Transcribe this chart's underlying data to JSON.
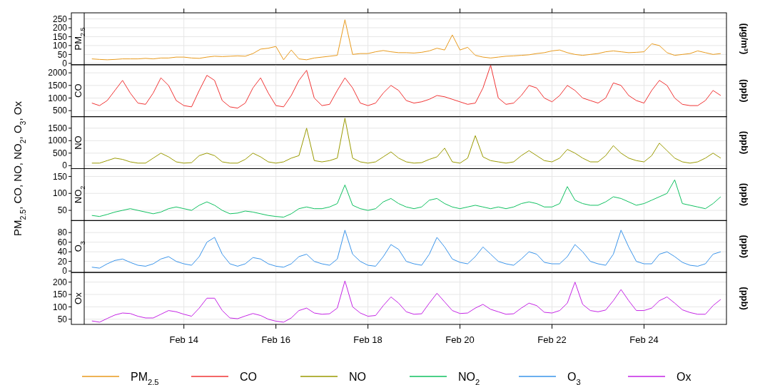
{
  "chart_data": [
    {
      "type": "line",
      "title": "PM$_{2.5}$",
      "ylabel": "PM$_{2.5}$, CO, NO, NO$_{2}$, O$_{3}$, Ox",
      "y2label": "(µg/m³)",
      "xlim": [
        "--02-11T20:00",
        "--02-25T19:00"
      ],
      "xticks": [
        {
          "value": "--02-14",
          "label": null
        },
        {
          "value": "--02-16",
          "label": null
        },
        {
          "value": "--02-18",
          "label": null
        },
        {
          "value": "--02-20",
          "label": null
        },
        {
          "value": "--02-22",
          "label": null
        },
        {
          "value": "--02-24",
          "label": null
        }
      ],
      "ylim": [
        -8,
        284
      ],
      "yticks": [
        0,
        50,
        100,
        150,
        200,
        250
      ],
      "tick_labels": "y",
      "grid": true,
      "legend": "bottom",
      "x": [
        "--02-12T00:00",
        "--02-12T04:00",
        "--02-12T08:00",
        "--02-12T12:00",
        "--02-12T16:00",
        "--02-12T20:00",
        "--02-13T00:00",
        "--02-13T04:00",
        "--02-13T08:00",
        "--02-13T12:00",
        "--02-13T16:00",
        "--02-13T20:00",
        "--02-14T00:00",
        "--02-14T04:00",
        "--02-14T08:00",
        "--02-14T12:00",
        "--02-14T16:00",
        "--02-14T20:00",
        "--02-15T00:00",
        "--02-15T04:00",
        "--02-15T08:00",
        "--02-15T12:00",
        "--02-15T16:00",
        "--02-15T20:00",
        "--02-16T00:00",
        "--02-16T04:00",
        "--02-16T08:00",
        "--02-16T12:00",
        "--02-16T16:00",
        "--02-16T20:00",
        "--02-17T00:00",
        "--02-17T04:00",
        "--02-17T08:00",
        "--02-17T12:00",
        "--02-17T16:00",
        "--02-17T20:00",
        "--02-18T00:00",
        "--02-18T04:00",
        "--02-18T08:00",
        "--02-18T12:00",
        "--02-18T16:00",
        "--02-18T20:00",
        "--02-19T00:00",
        "--02-19T04:00",
        "--02-19T08:00",
        "--02-19T12:00",
        "--02-19T16:00",
        "--02-19T20:00",
        "--02-20T00:00",
        "--02-20T04:00",
        "--02-20T08:00",
        "--02-20T12:00",
        "--02-20T16:00",
        "--02-20T20:00",
        "--02-21T00:00",
        "--02-21T04:00",
        "--02-21T08:00",
        "--02-21T12:00",
        "--02-21T16:00",
        "--02-21T20:00",
        "--02-22T00:00",
        "--02-22T04:00",
        "--02-22T08:00",
        "--02-22T12:00",
        "--02-22T16:00",
        "--02-22T20:00",
        "--02-23T00:00",
        "--02-23T04:00",
        "--02-23T08:00",
        "--02-23T12:00",
        "--02-23T16:00",
        "--02-23T20:00",
        "--02-24T00:00",
        "--02-24T04:00",
        "--02-24T08:00",
        "--02-24T12:00",
        "--02-24T16:00",
        "--02-24T20:00",
        "--02-25T00:00",
        "--02-25T04:00",
        "--02-25T08:00",
        "--02-25T12:00",
        "--02-25T16:00"
      ],
      "series": [
        {
          "name": "PM$_{2.5}$",
          "color": "#e89a1c",
          "values": [
            25,
            22,
            20,
            22,
            25,
            25,
            25,
            28,
            25,
            30,
            30,
            35,
            35,
            30,
            28,
            35,
            40,
            38,
            40,
            42,
            40,
            55,
            80,
            85,
            95,
            20,
            75,
            25,
            20,
            30,
            35,
            40,
            45,
            245,
            50,
            55,
            55,
            65,
            72,
            65,
            60,
            60,
            58,
            62,
            70,
            85,
            75,
            160,
            75,
            90,
            45,
            35,
            30,
            35,
            40,
            42,
            45,
            48,
            55,
            60,
            70,
            75,
            60,
            50,
            45,
            50,
            55,
            65,
            70,
            65,
            60,
            62,
            65,
            110,
            100,
            60,
            45,
            50,
            55,
            70,
            60,
            50,
            55
          ]
        }
      ]
    },
    {
      "type": "line",
      "title": "CO",
      "y2label": "(ppb)",
      "xlim": [
        "--02-11T20:00",
        "--02-25T19:00"
      ],
      "xticks": [
        {
          "value": "--02-14",
          "label": null
        },
        {
          "value": "--02-16",
          "label": null
        },
        {
          "value": "--02-18",
          "label": null
        },
        {
          "value": "--02-20",
          "label": null
        },
        {
          "value": "--02-22",
          "label": null
        },
        {
          "value": "--02-24",
          "label": null
        }
      ],
      "ylim": [
        260,
        2320
      ],
      "yticks": [
        500,
        1000,
        1500,
        2000
      ],
      "tick_labels": "y",
      "grid": true,
      "legend": "bottom",
      "x": [
        "--02-12T00:00",
        "--02-12T04:00",
        "--02-12T08:00",
        "--02-12T12:00",
        "--02-12T16:00",
        "--02-12T20:00",
        "--02-13T00:00",
        "--02-13T04:00",
        "--02-13T08:00",
        "--02-13T12:00",
        "--02-13T16:00",
        "--02-13T20:00",
        "--02-14T00:00",
        "--02-14T04:00",
        "--02-14T08:00",
        "--02-14T12:00",
        "--02-14T16:00",
        "--02-14T20:00",
        "--02-15T00:00",
        "--02-15T04:00",
        "--02-15T08:00",
        "--02-15T12:00",
        "--02-15T16:00",
        "--02-15T20:00",
        "--02-16T00:00",
        "--02-16T04:00",
        "--02-16T08:00",
        "--02-16T12:00",
        "--02-16T16:00",
        "--02-16T20:00",
        "--02-17T00:00",
        "--02-17T04:00",
        "--02-17T08:00",
        "--02-17T12:00",
        "--02-17T16:00",
        "--02-17T20:00",
        "--02-18T00:00",
        "--02-18T04:00",
        "--02-18T08:00",
        "--02-18T12:00",
        "--02-18T16:00",
        "--02-18T20:00",
        "--02-19T00:00",
        "--02-19T04:00",
        "--02-19T08:00",
        "--02-19T12:00",
        "--02-19T16:00",
        "--02-19T20:00",
        "--02-20T00:00",
        "--02-20T04:00",
        "--02-20T08:00",
        "--02-20T12:00",
        "--02-20T16:00",
        "--02-20T20:00",
        "--02-21T00:00",
        "--02-21T04:00",
        "--02-21T08:00",
        "--02-21T12:00",
        "--02-21T16:00",
        "--02-21T20:00",
        "--02-22T00:00",
        "--02-22T04:00",
        "--02-22T08:00",
        "--02-22T12:00",
        "--02-22T16:00",
        "--02-22T20:00",
        "--02-23T00:00",
        "--02-23T04:00",
        "--02-23T08:00",
        "--02-23T12:00",
        "--02-23T16:00",
        "--02-23T20:00",
        "--02-24T00:00",
        "--02-24T04:00",
        "--02-24T08:00",
        "--02-24T12:00",
        "--02-24T16:00",
        "--02-24T20:00",
        "--02-25T00:00",
        "--02-25T04:00",
        "--02-25T08:00",
        "--02-25T12:00",
        "--02-25T16:00"
      ],
      "series": [
        {
          "name": "CO",
          "color": "#f03434",
          "values": [
            800,
            700,
            900,
            1300,
            1700,
            1200,
            800,
            750,
            1200,
            1800,
            1500,
            900,
            700,
            650,
            1300,
            1900,
            1700,
            900,
            650,
            600,
            800,
            1400,
            1800,
            1200,
            700,
            650,
            1100,
            1700,
            2100,
            1000,
            700,
            750,
            1300,
            1800,
            1400,
            800,
            700,
            800,
            1200,
            1500,
            1300,
            900,
            800,
            850,
            950,
            1100,
            1050,
            950,
            850,
            750,
            800,
            1400,
            2300,
            1000,
            750,
            800,
            1100,
            1500,
            1400,
            1000,
            850,
            1100,
            1500,
            1300,
            1000,
            900,
            800,
            1000,
            1600,
            1500,
            1100,
            900,
            800,
            1300,
            1700,
            1500,
            1000,
            750,
            700,
            700,
            900,
            1300,
            1100
          ]
        }
      ]
    },
    {
      "type": "line",
      "title": "NO",
      "y2label": "(ppb)",
      "xlim": [
        "--02-11T20:00",
        "--02-25T19:00"
      ],
      "xticks": [
        {
          "value": "--02-14",
          "label": null
        },
        {
          "value": "--02-16",
          "label": null
        },
        {
          "value": "--02-18",
          "label": null
        },
        {
          "value": "--02-20",
          "label": null
        },
        {
          "value": "--02-22",
          "label": null
        },
        {
          "value": "--02-24",
          "label": null
        }
      ],
      "ylim": [
        -120,
        1960
      ],
      "yticks": [
        0,
        500,
        1000,
        1500
      ],
      "tick_labels": "y",
      "grid": true,
      "legend": "bottom",
      "x": [
        "--02-12T00:00",
        "--02-12T04:00",
        "--02-12T08:00",
        "--02-12T12:00",
        "--02-12T16:00",
        "--02-12T20:00",
        "--02-13T00:00",
        "--02-13T04:00",
        "--02-13T08:00",
        "--02-13T12:00",
        "--02-13T16:00",
        "--02-13T20:00",
        "--02-14T00:00",
        "--02-14T04:00",
        "--02-14T08:00",
        "--02-14T12:00",
        "--02-14T16:00",
        "--02-14T20:00",
        "--02-15T00:00",
        "--02-15T04:00",
        "--02-15T08:00",
        "--02-15T12:00",
        "--02-15T16:00",
        "--02-15T20:00",
        "--02-16T00:00",
        "--02-16T04:00",
        "--02-16T08:00",
        "--02-16T12:00",
        "--02-16T16:00",
        "--02-16T20:00",
        "--02-17T00:00",
        "--02-17T04:00",
        "--02-17T08:00",
        "--02-17T12:00",
        "--02-17T16:00",
        "--02-17T20:00",
        "--02-18T00:00",
        "--02-18T04:00",
        "--02-18T08:00",
        "--02-18T12:00",
        "--02-18T16:00",
        "--02-18T20:00",
        "--02-19T00:00",
        "--02-19T04:00",
        "--02-19T08:00",
        "--02-19T12:00",
        "--02-19T16:00",
        "--02-19T20:00",
        "--02-20T00:00",
        "--02-20T04:00",
        "--02-20T08:00",
        "--02-20T12:00",
        "--02-20T16:00",
        "--02-20T20:00",
        "--02-21T00:00",
        "--02-21T04:00",
        "--02-21T08:00",
        "--02-21T12:00",
        "--02-21T16:00",
        "--02-21T20:00",
        "--02-22T00:00",
        "--02-22T04:00",
        "--02-22T08:00",
        "--02-22T12:00",
        "--02-22T16:00",
        "--02-22T20:00",
        "--02-23T00:00",
        "--02-23T04:00",
        "--02-23T08:00",
        "--02-23T12:00",
        "--02-23T16:00",
        "--02-23T20:00",
        "--02-24T00:00",
        "--02-24T04:00",
        "--02-24T08:00",
        "--02-24T12:00",
        "--02-24T16:00",
        "--02-24T20:00",
        "--02-25T00:00",
        "--02-25T04:00",
        "--02-25T08:00",
        "--02-25T12:00",
        "--02-25T16:00"
      ],
      "series": [
        {
          "name": "NO",
          "color": "#9a9a00",
          "values": [
            100,
            100,
            200,
            300,
            250,
            150,
            100,
            100,
            300,
            500,
            350,
            150,
            100,
            120,
            400,
            500,
            400,
            150,
            100,
            100,
            250,
            500,
            350,
            150,
            100,
            150,
            300,
            400,
            1500,
            200,
            150,
            200,
            300,
            1900,
            300,
            150,
            100,
            150,
            350,
            550,
            300,
            150,
            100,
            120,
            250,
            350,
            700,
            150,
            100,
            300,
            1200,
            350,
            200,
            150,
            100,
            150,
            400,
            600,
            400,
            200,
            150,
            300,
            650,
            500,
            300,
            150,
            150,
            400,
            800,
            500,
            300,
            200,
            150,
            400,
            900,
            600,
            300,
            150,
            100,
            150,
            300,
            500,
            300
          ]
        }
      ]
    },
    {
      "type": "line",
      "title": "NO$_{2}$",
      "y2label": "(ppb)",
      "xlim": [
        "--02-11T20:00",
        "--02-25T19:00"
      ],
      "xticks": [
        {
          "value": "--02-14",
          "label": null
        },
        {
          "value": "--02-16",
          "label": null
        },
        {
          "value": "--02-18",
          "label": null
        },
        {
          "value": "--02-20",
          "label": null
        },
        {
          "value": "--02-22",
          "label": null
        },
        {
          "value": "--02-24",
          "label": null
        }
      ],
      "ylim": [
        20,
        173
      ],
      "yticks": [
        50,
        100,
        150
      ],
      "tick_labels": "y",
      "grid": true,
      "legend": "bottom",
      "x": [
        "--02-12T00:00",
        "--02-12T04:00",
        "--02-12T08:00",
        "--02-12T12:00",
        "--02-12T16:00",
        "--02-12T20:00",
        "--02-13T00:00",
        "--02-13T04:00",
        "--02-13T08:00",
        "--02-13T12:00",
        "--02-13T16:00",
        "--02-13T20:00",
        "--02-14T00:00",
        "--02-14T04:00",
        "--02-14T08:00",
        "--02-14T12:00",
        "--02-14T16:00",
        "--02-14T20:00",
        "--02-15T00:00",
        "--02-15T04:00",
        "--02-15T08:00",
        "--02-15T12:00",
        "--02-15T16:00",
        "--02-15T20:00",
        "--02-16T00:00",
        "--02-16T04:00",
        "--02-16T08:00",
        "--02-16T12:00",
        "--02-16T16:00",
        "--02-16T20:00",
        "--02-17T00:00",
        "--02-17T04:00",
        "--02-17T08:00",
        "--02-17T12:00",
        "--02-17T16:00",
        "--02-17T20:00",
        "--02-18T00:00",
        "--02-18T04:00",
        "--02-18T08:00",
        "--02-18T12:00",
        "--02-18T16:00",
        "--02-18T20:00",
        "--02-19T00:00",
        "--02-19T04:00",
        "--02-19T08:00",
        "--02-19T12:00",
        "--02-19T16:00",
        "--02-19T20:00",
        "--02-20T00:00",
        "--02-20T04:00",
        "--02-20T08:00",
        "--02-20T12:00",
        "--02-20T16:00",
        "--02-20T20:00",
        "--02-21T00:00",
        "--02-21T04:00",
        "--02-21T08:00",
        "--02-21T12:00",
        "--02-21T16:00",
        "--02-21T20:00",
        "--02-22T00:00",
        "--02-22T04:00",
        "--02-22T08:00",
        "--02-22T12:00",
        "--02-22T16:00",
        "--02-22T20:00",
        "--02-23T00:00",
        "--02-23T04:00",
        "--02-23T08:00",
        "--02-23T12:00",
        "--02-23T16:00",
        "--02-23T20:00",
        "--02-24T00:00",
        "--02-24T04:00",
        "--02-24T08:00",
        "--02-24T12:00",
        "--02-24T16:00",
        "--02-24T20:00",
        "--02-25T00:00",
        "--02-25T04:00",
        "--02-25T08:00",
        "--02-25T12:00",
        "--02-25T16:00"
      ],
      "series": [
        {
          "name": "NO$_{2}$",
          "color": "#10c060",
          "values": [
            35,
            32,
            38,
            45,
            50,
            55,
            50,
            45,
            40,
            45,
            55,
            60,
            55,
            50,
            65,
            75,
            65,
            50,
            40,
            42,
            48,
            45,
            40,
            35,
            32,
            30,
            40,
            55,
            60,
            55,
            55,
            60,
            70,
            125,
            65,
            55,
            50,
            55,
            75,
            85,
            70,
            60,
            55,
            60,
            80,
            85,
            70,
            60,
            55,
            60,
            65,
            60,
            55,
            60,
            55,
            60,
            70,
            75,
            70,
            60,
            60,
            70,
            120,
            80,
            70,
            65,
            65,
            75,
            90,
            85,
            75,
            65,
            70,
            80,
            90,
            100,
            140,
            70,
            65,
            60,
            55,
            70,
            90
          ]
        }
      ]
    },
    {
      "type": "line",
      "title": "O$_{3}$",
      "y2label": "(ppb)",
      "xlim": [
        "--02-11T20:00",
        "--02-25T19:00"
      ],
      "xticks": [
        {
          "value": "--02-14",
          "label": null
        },
        {
          "value": "--02-16",
          "label": null
        },
        {
          "value": "--02-18",
          "label": null
        },
        {
          "value": "--02-20",
          "label": null
        },
        {
          "value": "--02-22",
          "label": null
        },
        {
          "value": "--02-24",
          "label": null
        }
      ],
      "ylim": [
        -3,
        105
      ],
      "yticks": [
        0,
        20,
        40,
        60,
        80
      ],
      "tick_labels": "y",
      "grid": true,
      "legend": "bottom",
      "x": [
        "--02-12T00:00",
        "--02-12T04:00",
        "--02-12T08:00",
        "--02-12T12:00",
        "--02-12T16:00",
        "--02-12T20:00",
        "--02-13T00:00",
        "--02-13T04:00",
        "--02-13T08:00",
        "--02-13T12:00",
        "--02-13T16:00",
        "--02-13T20:00",
        "--02-14T00:00",
        "--02-14T04:00",
        "--02-14T08:00",
        "--02-14T12:00",
        "--02-14T16:00",
        "--02-14T20:00",
        "--02-15T00:00",
        "--02-15T04:00",
        "--02-15T08:00",
        "--02-15T12:00",
        "--02-15T16:00",
        "--02-15T20:00",
        "--02-16T00:00",
        "--02-16T04:00",
        "--02-16T08:00",
        "--02-16T12:00",
        "--02-16T16:00",
        "--02-16T20:00",
        "--02-17T00:00",
        "--02-17T04:00",
        "--02-17T08:00",
        "--02-17T12:00",
        "--02-17T16:00",
        "--02-17T20:00",
        "--02-18T00:00",
        "--02-18T04:00",
        "--02-18T08:00",
        "--02-18T12:00",
        "--02-18T16:00",
        "--02-18T20:00",
        "--02-19T00:00",
        "--02-19T04:00",
        "--02-19T08:00",
        "--02-19T12:00",
        "--02-19T16:00",
        "--02-19T20:00",
        "--02-20T00:00",
        "--02-20T04:00",
        "--02-20T08:00",
        "--02-20T12:00",
        "--02-20T16:00",
        "--02-20T20:00",
        "--02-21T00:00",
        "--02-21T04:00",
        "--02-21T08:00",
        "--02-21T12:00",
        "--02-21T16:00",
        "--02-21T20:00",
        "--02-22T00:00",
        "--02-22T04:00",
        "--02-22T08:00",
        "--02-22T12:00",
        "--02-22T16:00",
        "--02-22T20:00",
        "--02-23T00:00",
        "--02-23T04:00",
        "--02-23T08:00",
        "--02-23T12:00",
        "--02-23T16:00",
        "--02-23T20:00",
        "--02-24T00:00",
        "--02-24T04:00",
        "--02-24T08:00",
        "--02-24T12:00",
        "--02-24T16:00",
        "--02-24T20:00",
        "--02-25T00:00",
        "--02-25T04:00",
        "--02-25T08:00",
        "--02-25T12:00",
        "--02-25T16:00"
      ],
      "series": [
        {
          "name": "O$_{3}$",
          "color": "#3a94ea",
          "values": [
            8,
            6,
            15,
            22,
            25,
            18,
            12,
            10,
            15,
            25,
            30,
            20,
            15,
            12,
            30,
            60,
            70,
            35,
            15,
            10,
            15,
            28,
            25,
            15,
            10,
            8,
            15,
            30,
            35,
            20,
            15,
            12,
            25,
            85,
            35,
            20,
            12,
            10,
            30,
            55,
            45,
            20,
            15,
            12,
            35,
            70,
            50,
            25,
            18,
            15,
            30,
            50,
            35,
            20,
            15,
            12,
            25,
            40,
            35,
            18,
            15,
            15,
            30,
            55,
            40,
            20,
            15,
            12,
            35,
            85,
            50,
            20,
            15,
            15,
            35,
            40,
            30,
            18,
            12,
            10,
            15,
            35,
            40
          ]
        }
      ]
    },
    {
      "type": "line",
      "title": "Ox",
      "y2label": "(ppb)",
      "xlim": [
        "--02-11T20:00",
        "--02-25T19:00"
      ],
      "xticks": [
        {
          "value": "--02-14",
          "label": "Feb 14"
        },
        {
          "value": "--02-16",
          "label": "Feb 16"
        },
        {
          "value": "--02-18",
          "label": "Feb 18"
        },
        {
          "value": "--02-20",
          "label": "Feb 20"
        },
        {
          "value": "--02-22",
          "label": "Feb 22"
        },
        {
          "value": "--02-24",
          "label": "Feb 24"
        }
      ],
      "ylim": [
        29,
        239
      ],
      "yticks": [
        50,
        100,
        150,
        200
      ],
      "grid": true,
      "legend": "bottom",
      "x": [
        "--02-12T00:00",
        "--02-12T04:00",
        "--02-12T08:00",
        "--02-12T12:00",
        "--02-12T16:00",
        "--02-12T20:00",
        "--02-13T00:00",
        "--02-13T04:00",
        "--02-13T08:00",
        "--02-13T12:00",
        "--02-13T16:00",
        "--02-13T20:00",
        "--02-14T00:00",
        "--02-14T04:00",
        "--02-14T08:00",
        "--02-14T12:00",
        "--02-14T16:00",
        "--02-14T20:00",
        "--02-15T00:00",
        "--02-15T04:00",
        "--02-15T08:00",
        "--02-15T12:00",
        "--02-15T16:00",
        "--02-15T20:00",
        "--02-16T00:00",
        "--02-16T04:00",
        "--02-16T08:00",
        "--02-16T12:00",
        "--02-16T16:00",
        "--02-16T20:00",
        "--02-17T00:00",
        "--02-17T04:00",
        "--02-17T08:00",
        "--02-17T12:00",
        "--02-17T16:00",
        "--02-17T20:00",
        "--02-18T00:00",
        "--02-18T04:00",
        "--02-18T08:00",
        "--02-18T12:00",
        "--02-18T16:00",
        "--02-18T20:00",
        "--02-19T00:00",
        "--02-19T04:00",
        "--02-19T08:00",
        "--02-19T12:00",
        "--02-19T16:00",
        "--02-19T20:00",
        "--02-20T00:00",
        "--02-20T04:00",
        "--02-20T08:00",
        "--02-20T12:00",
        "--02-20T16:00",
        "--02-20T20:00",
        "--02-21T00:00",
        "--02-21T04:00",
        "--02-21T08:00",
        "--02-21T12:00",
        "--02-21T16:00",
        "--02-21T20:00",
        "--02-22T00:00",
        "--02-22T04:00",
        "--02-22T08:00",
        "--02-22T12:00",
        "--02-22T16:00",
        "--02-22T20:00",
        "--02-23T00:00",
        "--02-23T04:00",
        "--02-23T08:00",
        "--02-23T12:00",
        "--02-23T16:00",
        "--02-23T20:00",
        "--02-24T00:00",
        "--02-24T04:00",
        "--02-24T08:00",
        "--02-24T12:00",
        "--02-24T16:00",
        "--02-24T20:00",
        "--02-25T00:00",
        "--02-25T04:00",
        "--02-25T08:00",
        "--02-25T12:00",
        "--02-25T16:00"
      ],
      "series": [
        {
          "name": "Ox",
          "color": "#c424e4",
          "values": [
            43,
            38,
            53,
            67,
            75,
            73,
            62,
            55,
            55,
            70,
            85,
            80,
            70,
            62,
            95,
            135,
            135,
            85,
            55,
            52,
            63,
            73,
            65,
            50,
            42,
            38,
            55,
            85,
            95,
            75,
            70,
            72,
            95,
            205,
            100,
            75,
            62,
            65,
            105,
            140,
            115,
            80,
            70,
            72,
            115,
            155,
            120,
            85,
            73,
            75,
            95,
            110,
            90,
            80,
            70,
            72,
            95,
            115,
            105,
            78,
            75,
            85,
            115,
            200,
            110,
            85,
            80,
            87,
            125,
            170,
            125,
            85,
            85,
            95,
            125,
            140,
            115,
            88,
            77,
            70,
            70,
            105,
            130
          ]
        }
      ]
    }
  ]
}
